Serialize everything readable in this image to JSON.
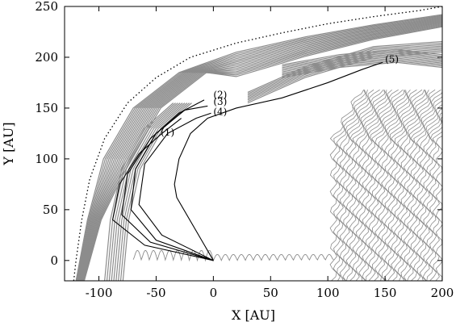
{
  "chart_data": {
    "type": "line",
    "xlabel": "X [AU]",
    "ylabel": "Y [AU]",
    "xlim": [
      -130,
      200
    ],
    "ylim": [
      -20,
      250
    ],
    "x_ticks": [
      -100,
      -50,
      0,
      50,
      100,
      150,
      200
    ],
    "y_ticks": [
      0,
      50,
      100,
      150,
      200,
      250
    ],
    "x_tick_labels": [
      "-100",
      "-50",
      "0",
      "50",
      "100",
      "150",
      "200"
    ],
    "y_tick_labels": [
      "0",
      "50",
      "100",
      "150",
      "200",
      "250"
    ],
    "grid": false,
    "colors": {
      "gray_structure": "#8c8c8c",
      "line": "#000000"
    },
    "dotted_boundary": [
      [
        -122,
        -20
      ],
      [
        -120,
        0
      ],
      [
        -115,
        40
      ],
      [
        -108,
        80
      ],
      [
        -95,
        120
      ],
      [
        -75,
        155
      ],
      [
        -50,
        180
      ],
      [
        -20,
        200
      ],
      [
        20,
        214
      ],
      [
        60,
        224
      ],
      [
        100,
        233
      ],
      [
        140,
        240
      ],
      [
        180,
        246
      ],
      [
        200,
        250
      ]
    ],
    "series": [
      {
        "label": "(1)",
        "points": [
          [
            0,
            0
          ],
          [
            -60,
            15
          ],
          [
            -88,
            40
          ],
          [
            -82,
            75
          ],
          [
            -65,
            105
          ],
          [
            -45,
            125
          ],
          [
            -28,
            140
          ]
        ],
        "label_at": [
          -46,
          123
        ]
      },
      {
        "label": "(2)",
        "points": [
          [
            0,
            0
          ],
          [
            -55,
            18
          ],
          [
            -80,
            45
          ],
          [
            -75,
            85
          ],
          [
            -55,
            120
          ],
          [
            -30,
            145
          ],
          [
            -8,
            158
          ]
        ],
        "label_at": [
          0,
          160
        ]
      },
      {
        "label": "(3)",
        "points": [
          [
            0,
            0
          ],
          [
            -50,
            20
          ],
          [
            -72,
            50
          ],
          [
            -68,
            90
          ],
          [
            -50,
            125
          ],
          [
            -25,
            148
          ],
          [
            -5,
            152
          ]
        ],
        "label_at": [
          0,
          153
        ]
      },
      {
        "label": "(4)",
        "points": [
          [
            0,
            0
          ],
          [
            -45,
            25
          ],
          [
            -65,
            55
          ],
          [
            -60,
            95
          ],
          [
            -40,
            125
          ],
          [
            -15,
            140
          ],
          [
            -2,
            145
          ]
        ],
        "label_at": [
          0,
          143
        ]
      },
      {
        "label": "(5)",
        "points": [
          [
            0,
            0
          ],
          [
            -32,
            62
          ],
          [
            -34,
            75
          ],
          [
            -30,
            100
          ],
          [
            -20,
            125
          ],
          [
            -5,
            140
          ],
          [
            20,
            150
          ],
          [
            60,
            160
          ],
          [
            100,
            175
          ],
          [
            130,
            188
          ],
          [
            148,
            195
          ]
        ],
        "label_at": [
          150,
          195
        ]
      }
    ]
  }
}
